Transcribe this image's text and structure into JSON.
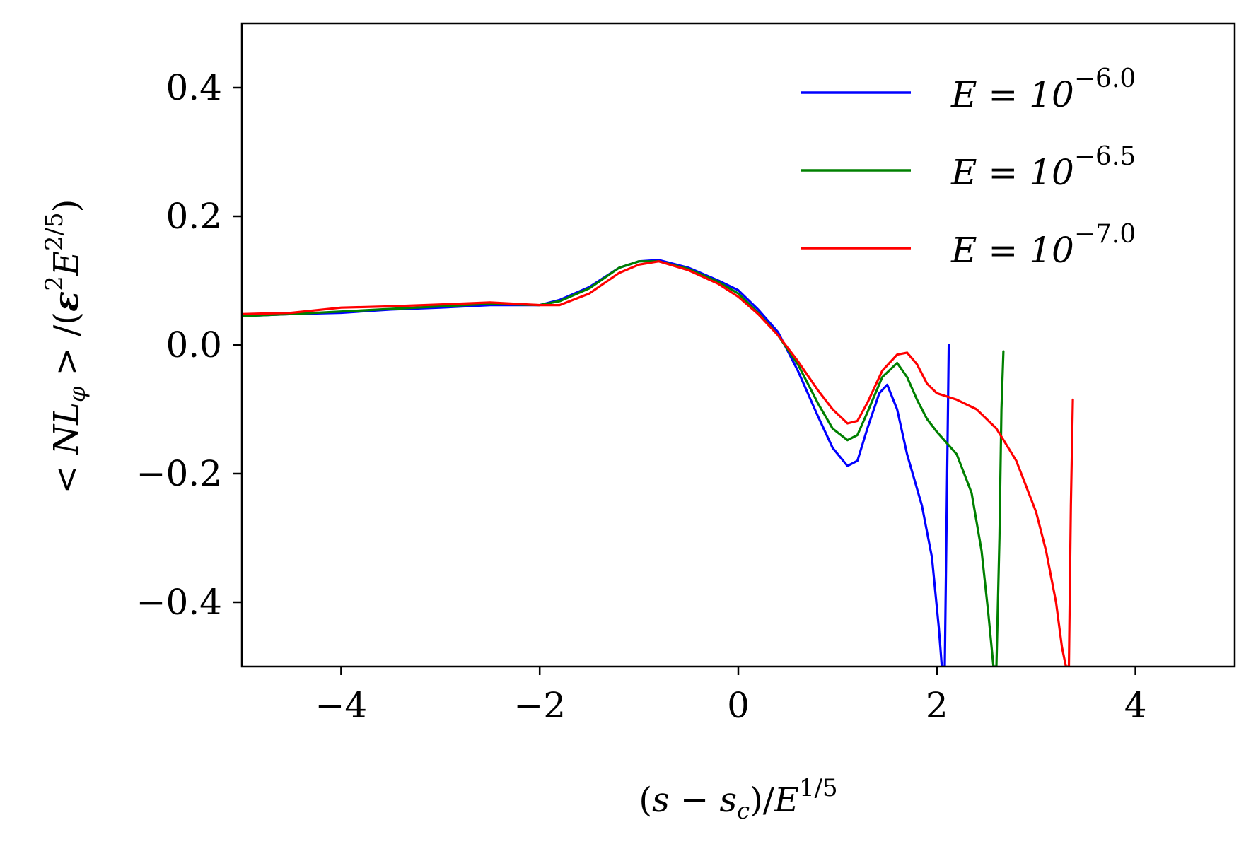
{
  "chart_data": {
    "type": "line",
    "xlabel": "(s − s_c)/E^{1/5}",
    "xlabel_parts": {
      "open": "(",
      "s": "s",
      "minus": " − ",
      "sc": "s",
      "sc_sub": "c",
      "close": ")/",
      "E": "E",
      "exp": "1/5"
    },
    "ylabel": "< NL_φ > /(ε^2 E^{2/5})",
    "ylabel_parts": {
      "lt": "< ",
      "NL": "NL",
      "sub": "φ",
      "gt": " > /(",
      "eps": "ε",
      "eps_exp": "2",
      "E": "E",
      "E_exp": "2/5",
      "close": ")"
    },
    "xlim": [
      -5,
      5
    ],
    "ylim": [
      -0.5,
      0.5
    ],
    "xticks": [
      -4,
      -2,
      0,
      2,
      4
    ],
    "xtick_labels": [
      "−4",
      "−2",
      "0",
      "2",
      "4"
    ],
    "yticks": [
      0.4,
      0.2,
      0.0,
      -0.2,
      -0.4
    ],
    "ytick_labels": [
      "0.4",
      "0.2",
      "0.0",
      "−0.2",
      "−0.4"
    ],
    "grid": false,
    "legend_position": "top-right",
    "series": [
      {
        "name": "E = 10^{-6.0}",
        "legend_prefix": "E = 10",
        "legend_exp": "−6.0",
        "color": "#0000ff",
        "x": [
          -5.0,
          -4.5,
          -4.0,
          -3.5,
          -3.0,
          -2.5,
          -2.0,
          -1.8,
          -1.5,
          -1.2,
          -1.0,
          -0.8,
          -0.5,
          -0.2,
          0.0,
          0.2,
          0.4,
          0.6,
          0.8,
          0.95,
          1.1,
          1.2,
          1.3,
          1.42,
          1.5,
          1.6,
          1.7,
          1.85,
          1.95,
          2.02,
          2.05,
          2.08,
          2.1,
          2.12
        ],
        "y": [
          0.045,
          0.048,
          0.05,
          0.055,
          0.058,
          0.062,
          0.062,
          0.07,
          0.09,
          0.12,
          0.13,
          0.132,
          0.12,
          0.1,
          0.085,
          0.055,
          0.02,
          -0.04,
          -0.11,
          -0.16,
          -0.188,
          -0.18,
          -0.13,
          -0.075,
          -0.062,
          -0.1,
          -0.17,
          -0.25,
          -0.33,
          -0.44,
          -0.5,
          -0.5,
          -0.25,
          0.0
        ]
      },
      {
        "name": "E = 10^{-6.5}",
        "legend_prefix": "E = 10",
        "legend_exp": "−6.5",
        "color": "#008000",
        "x": [
          -5.0,
          -4.5,
          -4.0,
          -3.5,
          -3.0,
          -2.5,
          -2.0,
          -1.8,
          -1.5,
          -1.2,
          -1.0,
          -0.8,
          -0.5,
          -0.2,
          0.0,
          0.2,
          0.4,
          0.6,
          0.8,
          0.95,
          1.1,
          1.2,
          1.3,
          1.45,
          1.6,
          1.7,
          1.8,
          1.9,
          2.0,
          2.2,
          2.35,
          2.45,
          2.52,
          2.57,
          2.6,
          2.63,
          2.65,
          2.67
        ],
        "y": [
          0.045,
          0.048,
          0.052,
          0.056,
          0.06,
          0.064,
          0.062,
          0.068,
          0.088,
          0.12,
          0.13,
          0.13,
          0.118,
          0.098,
          0.08,
          0.05,
          0.015,
          -0.03,
          -0.09,
          -0.13,
          -0.148,
          -0.14,
          -0.105,
          -0.05,
          -0.028,
          -0.05,
          -0.085,
          -0.115,
          -0.135,
          -0.17,
          -0.23,
          -0.32,
          -0.42,
          -0.5,
          -0.5,
          -0.3,
          -0.1,
          -0.01
        ]
      },
      {
        "name": "E = 10^{-7.0}",
        "legend_prefix": "E = 10",
        "legend_exp": "−7.0",
        "color": "#ff0000",
        "x": [
          -5.0,
          -4.5,
          -4.0,
          -3.5,
          -3.0,
          -2.5,
          -2.0,
          -1.8,
          -1.5,
          -1.2,
          -1.0,
          -0.8,
          -0.5,
          -0.2,
          0.0,
          0.2,
          0.4,
          0.6,
          0.8,
          0.95,
          1.1,
          1.2,
          1.3,
          1.45,
          1.6,
          1.7,
          1.8,
          1.9,
          2.0,
          2.2,
          2.4,
          2.6,
          2.8,
          3.0,
          3.1,
          3.2,
          3.26,
          3.3,
          3.33,
          3.35,
          3.37
        ],
        "y": [
          0.048,
          0.05,
          0.058,
          0.06,
          0.063,
          0.066,
          0.062,
          0.062,
          0.08,
          0.112,
          0.125,
          0.13,
          0.116,
          0.095,
          0.075,
          0.048,
          0.015,
          -0.025,
          -0.07,
          -0.1,
          -0.122,
          -0.118,
          -0.09,
          -0.04,
          -0.015,
          -0.012,
          -0.03,
          -0.06,
          -0.075,
          -0.085,
          -0.1,
          -0.13,
          -0.18,
          -0.26,
          -0.32,
          -0.4,
          -0.47,
          -0.5,
          -0.5,
          -0.25,
          -0.085
        ]
      }
    ]
  }
}
